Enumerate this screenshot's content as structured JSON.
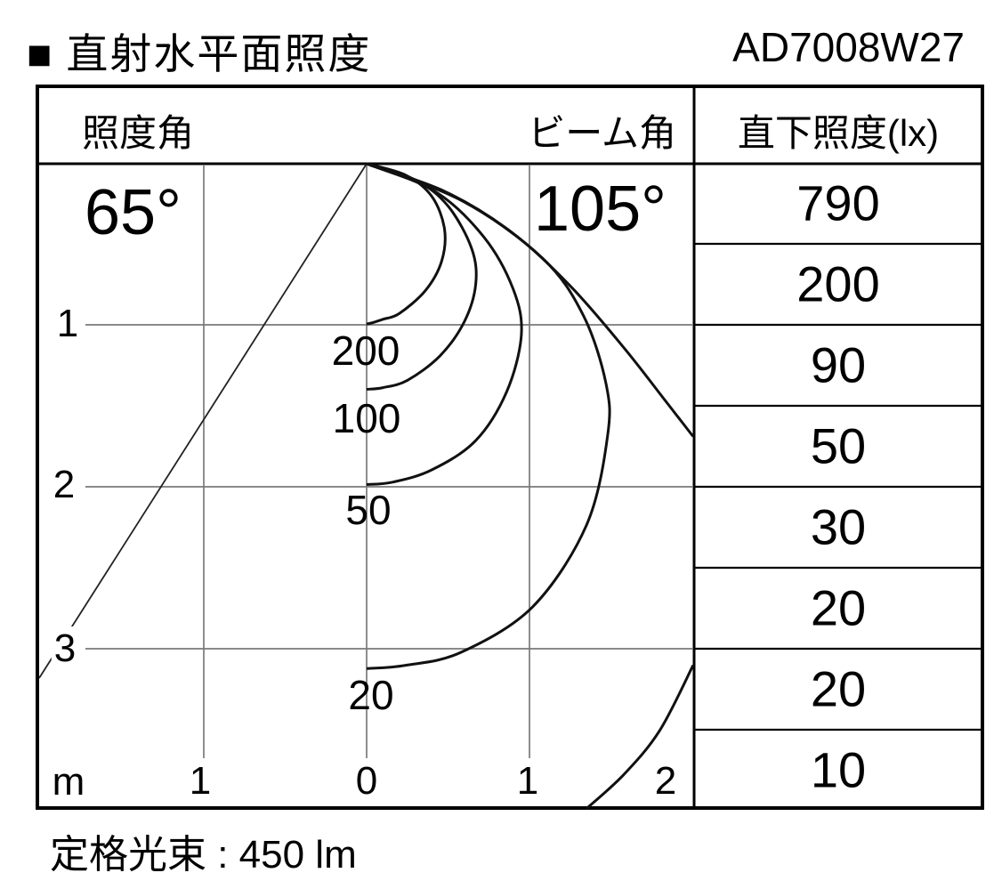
{
  "header": {
    "bullet": "■",
    "title": "直射水平面照度",
    "product_code": "AD7008W27"
  },
  "table": {
    "col_illuminance_angle": "照度角",
    "col_beam_angle": "ビーム角",
    "col_direct_illuminance": "直下照度(lx)",
    "direct_values": [
      "790",
      "200",
      "90",
      "50",
      "30",
      "20",
      "20",
      "10"
    ]
  },
  "chart_labels": {
    "illuminance_angle": "65°",
    "beam_angle": "105°",
    "curve_200": "200",
    "curve_100": "100",
    "curve_50": "50",
    "curve_20": "20",
    "ytick_1": "1",
    "ytick_2": "2",
    "ytick_3": "3",
    "xtick_unit": "m",
    "xtick_l1": "1",
    "xtick_0": "0",
    "xtick_r1": "1",
    "xtick_r2": "2"
  },
  "footer": {
    "rated_flux": "定格光束 : 450 lm"
  },
  "chart_data": {
    "type": "line",
    "title": "直射水平面照度",
    "product_code": "AD7008W27",
    "illuminance_angle_deg": 65,
    "beam_angle_deg": 105,
    "rated_flux_lm": 450,
    "x_axis": {
      "label": "m",
      "tick_labels": [
        "m",
        "1",
        "0",
        "1",
        "2"
      ],
      "range_m": [
        -2,
        2
      ]
    },
    "y_axis": {
      "tick_labels": [
        "1",
        "2",
        "3"
      ],
      "range_m": [
        0,
        4
      ],
      "unit": "m"
    },
    "direct_illuminance_lx_column": [
      790,
      200,
      90,
      50,
      30,
      20,
      20,
      10
    ],
    "iso_lux_contours": [
      {
        "lux": 200,
        "points_m": [
          [
            0,
            0
          ],
          [
            0.24,
            0.07
          ],
          [
            0.4,
            0.2
          ],
          [
            0.478,
            0.4
          ],
          [
            0.46,
            0.6
          ],
          [
            0.36,
            0.78
          ],
          [
            0.2,
            0.92
          ],
          [
            0.1,
            0.955
          ],
          [
            0.04,
            0.975
          ],
          [
            0,
            0.985
          ]
        ]
      },
      {
        "lux": 100,
        "points_m": [
          [
            0,
            0
          ],
          [
            0.3,
            0.1
          ],
          [
            0.5,
            0.26
          ],
          [
            0.645,
            0.52
          ],
          [
            0.67,
            0.74
          ],
          [
            0.6,
            0.97
          ],
          [
            0.45,
            1.18
          ],
          [
            0.25,
            1.33
          ],
          [
            0.1,
            1.375
          ],
          [
            0,
            1.385
          ]
        ]
      },
      {
        "lux": 50,
        "points_m": [
          [
            0,
            0
          ],
          [
            0.42,
            0.17
          ],
          [
            0.72,
            0.45
          ],
          [
            0.9,
            0.77
          ],
          [
            0.95,
            1.05
          ],
          [
            0.86,
            1.4
          ],
          [
            0.67,
            1.7
          ],
          [
            0.4,
            1.88
          ],
          [
            0.16,
            1.955
          ],
          [
            0,
            1.97
          ]
        ]
      },
      {
        "lux": 20,
        "points_m": [
          [
            0,
            0
          ],
          [
            0.59,
            0.23
          ],
          [
            1.08,
            0.58
          ],
          [
            1.33,
            0.93
          ],
          [
            1.47,
            1.35
          ],
          [
            1.48,
            1.67
          ],
          [
            1.35,
            2.22
          ],
          [
            1.02,
            2.72
          ],
          [
            0.58,
            3.0
          ],
          [
            0.24,
            3.08
          ],
          [
            0,
            3.1
          ]
        ]
      },
      {
        "lux": 10,
        "segments": [
          [
            [
              0,
              0
            ],
            [
              0.48,
              0.17
            ],
            [
              0.89,
              0.42
            ],
            [
              1.25,
              0.75
            ],
            [
              1.58,
              1.13
            ],
            [
              1.83,
              1.45
            ],
            [
              2.005,
              1.675
            ]
          ],
          [
            [
              2.005,
              3.08
            ],
            [
              1.8,
              3.48
            ],
            [
              1.58,
              3.75
            ],
            [
              1.35,
              3.96
            ]
          ]
        ]
      }
    ],
    "grid": {
      "horizontal_m": [
        1,
        2,
        3
      ],
      "vertical_m": [
        -1,
        0,
        1,
        2
      ]
    }
  }
}
